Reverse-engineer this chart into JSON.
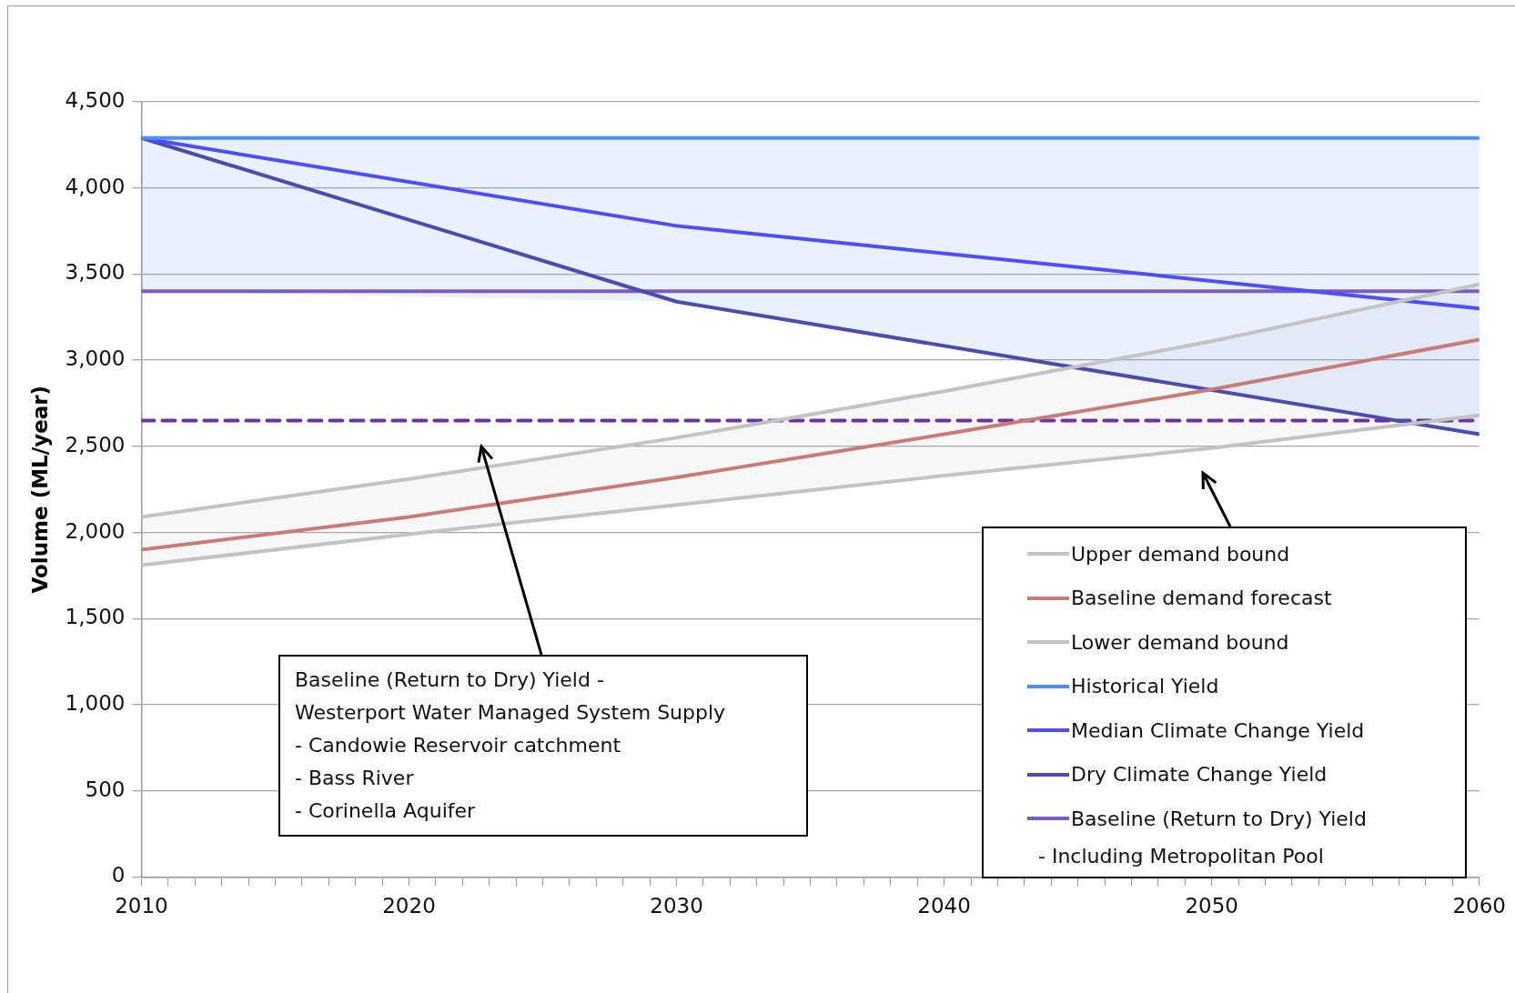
{
  "chart_data": {
    "type": "line",
    "ylabel": "Volume (ML/year)",
    "xlim": [
      2010,
      2060
    ],
    "xticks": [
      2010,
      {
        "value": 2011,
        "label": null
      },
      {
        "value": 2012,
        "label": null
      },
      {
        "value": 2013,
        "label": null
      },
      {
        "value": 2014,
        "label": null
      },
      {
        "value": 2015,
        "label": null
      },
      {
        "value": 2016,
        "label": null
      },
      {
        "value": 2017,
        "label": null
      },
      {
        "value": 2018,
        "label": null
      },
      {
        "value": 2019,
        "label": null
      },
      2020,
      {
        "value": 2021,
        "label": null
      },
      {
        "value": 2022,
        "label": null
      },
      {
        "value": 2023,
        "label": null
      },
      {
        "value": 2024,
        "label": null
      },
      {
        "value": 2025,
        "label": null
      },
      {
        "value": 2026,
        "label": null
      },
      {
        "value": 2027,
        "label": null
      },
      {
        "value": 2028,
        "label": null
      },
      {
        "value": 2029,
        "label": null
      },
      2030,
      {
        "value": 2031,
        "label": null
      },
      {
        "value": 2032,
        "label": null
      },
      {
        "value": 2033,
        "label": null
      },
      {
        "value": 2034,
        "label": null
      },
      {
        "value": 2035,
        "label": null
      },
      {
        "value": 2036,
        "label": null
      },
      {
        "value": 2037,
        "label": null
      },
      {
        "value": 2038,
        "label": null
      },
      {
        "value": 2039,
        "label": null
      },
      2040,
      {
        "value": 2041,
        "label": null
      },
      {
        "value": 2042,
        "label": null
      },
      {
        "value": 2043,
        "label": null
      },
      {
        "value": 2044,
        "label": null
      },
      {
        "value": 2045,
        "label": null
      },
      {
        "value": 2046,
        "label": null
      },
      {
        "value": 2047,
        "label": null
      },
      {
        "value": 2048,
        "label": null
      },
      {
        "value": 2049,
        "label": null
      },
      2050,
      {
        "value": 2051,
        "label": null
      },
      {
        "value": 2052,
        "label": null
      },
      {
        "value": 2053,
        "label": null
      },
      {
        "value": 2054,
        "label": null
      },
      {
        "value": 2055,
        "label": null
      },
      {
        "value": 2056,
        "label": null
      },
      {
        "value": 2057,
        "label": null
      },
      {
        "value": 2058,
        "label": null
      },
      {
        "value": 2059,
        "label": null
      },
      2060
    ],
    "ylim": [
      0,
      4500
    ],
    "yticks": [
      0,
      {
        "value": 500,
        "label": "500"
      },
      {
        "value": 1000,
        "label": "1,000"
      },
      {
        "value": 1500,
        "label": "1,500"
      },
      {
        "value": 2000,
        "label": "2,000"
      },
      {
        "value": 2500,
        "label": "2,500"
      },
      {
        "value": 3000,
        "label": "3,000"
      },
      {
        "value": 3500,
        "label": "3,500"
      },
      {
        "value": 4000,
        "label": "4,000"
      },
      {
        "value": 4500,
        "label": "4,500"
      }
    ],
    "grid": "y",
    "legend": "bottom right",
    "marker": "none",
    "line_style": "solid",
    "series": [
      {
        "name": "Upper demand bound",
        "color": "#c3c3c3",
        "x": [
          2010,
          2020,
          2030,
          2040,
          2050,
          2060
        ],
        "values": [
          2090,
          2310,
          2550,
          2820,
          3110,
          3440
        ],
        "lower": [
          1810,
          1990,
          2160,
          2330,
          2490,
          2680
        ],
        "upper": [
          2090,
          2310,
          2550,
          2820,
          3110,
          3440
        ]
      },
      {
        "name": "Baseline demand forecast",
        "color": "#c97b78",
        "x": [
          2010,
          2020,
          2030,
          2040,
          2050,
          2060
        ],
        "values": [
          1900,
          2090,
          2320,
          2570,
          2830,
          3120
        ]
      },
      {
        "name": "Lower demand bound",
        "color": "#c3c3c3",
        "x": [
          2010,
          2020,
          2030,
          2040,
          2050,
          2060
        ],
        "values": [
          1810,
          1990,
          2160,
          2330,
          2490,
          2680
        ]
      },
      {
        "name": "Historical Yield",
        "color": "#4a90f0",
        "x": [
          2010,
          2030,
          2040,
          2050,
          2060
        ],
        "values": [
          4290,
          4290,
          4290,
          4290,
          4290
        ],
        "lower": [
          3400,
          3340,
          3080,
          2830,
          2570
        ],
        "upper": [
          4290,
          4290,
          4290,
          4290,
          4290
        ]
      },
      {
        "name": "Median Climate Change Yield",
        "color": "#4d4dff",
        "x": [
          2010,
          2030,
          2060
        ],
        "values": [
          4290,
          3780,
          3300
        ]
      },
      {
        "name": "Dry Climate Change Yield",
        "color": "#4b4bb0",
        "x": [
          2010,
          2030,
          2060
        ],
        "values": [
          4290,
          3340,
          2570
        ]
      },
      {
        "name": "Baseline (Return to Dry) Yield",
        "color": "#7d5cc0",
        "x": [
          2010,
          2060
        ],
        "values": [
          3400,
          3400
        ]
      },
      {
        "color": "#7030a0",
        "line_style": "dashed",
        "x": [
          2010,
          2060
        ],
        "values": [
          2650,
          2650
        ]
      }
    ],
    "annotations": [
      "Baseline (Return to Dry) Yield -\nWesterport Water Managed System Supply\n- Candowie Reservoir catchment\n- Bass River\n- Corinella Aquifer",
      "- Including Metropolitan Pool"
    ]
  }
}
